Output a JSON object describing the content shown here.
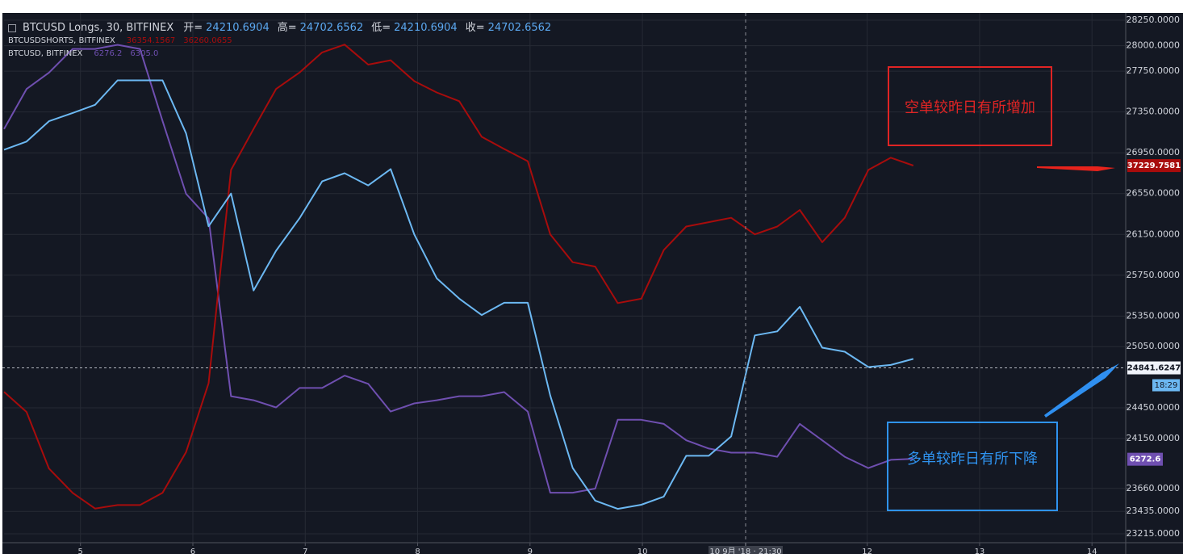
{
  "chart_data": {
    "type": "line",
    "title": "BTCUSD Longs, 30, BITFINEX",
    "ohlc": [
      {
        "label": "开=",
        "value": "24210.6904"
      },
      {
        "label": "高=",
        "value": "24702.6562"
      },
      {
        "label": "低=",
        "value": "24210.6904"
      },
      {
        "label": "收=",
        "value": "24702.6562"
      }
    ],
    "x": [
      4.32,
      4.52,
      4.72,
      4.93,
      5.13,
      5.33,
      5.53,
      5.73,
      5.94,
      6.14,
      6.34,
      6.54,
      6.74,
      6.95,
      7.15,
      7.35,
      7.56,
      7.76,
      7.97,
      8.17,
      8.37,
      8.57,
      8.77,
      8.98,
      9.18,
      9.38,
      9.58,
      9.78,
      9.99,
      10.19,
      10.39,
      10.59,
      10.79,
      11.0,
      11.2,
      11.4,
      11.6,
      11.8,
      12.01,
      12.21,
      12.41
    ],
    "xlim": [
      4.32,
      14.3
    ],
    "xticks": [
      5,
      6,
      7,
      8,
      9,
      10,
      12,
      13,
      14
    ],
    "ylim": [
      23215,
      28250
    ],
    "yticks": [
      {
        "value": 28250,
        "label": "28250.0000"
      },
      {
        "value": 28000,
        "label": "28000.0000"
      },
      {
        "value": 27750,
        "label": "27750.0000"
      },
      {
        "value": 27350,
        "label": "27350.0000"
      },
      {
        "value": 26950,
        "label": "26950.0000"
      },
      {
        "value": 26550,
        "label": "26550.0000"
      },
      {
        "value": 26150,
        "label": "26150.0000"
      },
      {
        "value": 25750,
        "label": "25750.0000"
      },
      {
        "value": 25350,
        "label": "25350.0000"
      },
      {
        "value": 25050,
        "label": "25050.0000"
      },
      {
        "value": 24450,
        "label": "24450.0000"
      },
      {
        "value": 24150,
        "label": "24150.0000"
      },
      {
        "value": 23660,
        "label": "23660.0000"
      },
      {
        "value": 23435,
        "label": "23435.0000"
      },
      {
        "value": 23215,
        "label": "23215.0000"
      }
    ],
    "grid": true,
    "series": [
      {
        "color": "#6cb8f2",
        "last_value": 24841.6247,
        "values": [
          26980,
          27060,
          27260,
          27340,
          27420,
          27660,
          27660,
          27660,
          27140,
          26230,
          26550,
          25600,
          25990,
          26310,
          26670,
          26750,
          26630,
          26790,
          26150,
          25720,
          25520,
          25360,
          25480,
          25480,
          24570,
          23860,
          23540,
          23460,
          23500,
          23580,
          23980,
          23980,
          24170,
          25160,
          25200,
          25440,
          25040,
          25000,
          24850,
          24870,
          24930
        ]
      },
      {
        "name": "BTCUSDSHORTS, BITFINEX",
        "color": "#a80c0c",
        "last_value": 37229.7581,
        "legend_values": [
          "36354.1567",
          "36260.0655"
        ],
        "ylim": [
          33000,
          38900
        ],
        "values": [
          34630,
          34400,
          33750,
          33470,
          33290,
          33330,
          33330,
          33470,
          33940,
          34730,
          37180,
          37650,
          38110,
          38300,
          38530,
          38620,
          38390,
          38440,
          38200,
          38070,
          37970,
          37560,
          37420,
          37280,
          36440,
          36120,
          36070,
          35650,
          35700,
          36260,
          36530,
          36580,
          36630,
          36440,
          36530,
          36720,
          36350,
          36630,
          37180,
          37320,
          37230
        ]
      },
      {
        "name": "BTCUSD, BITFINEX",
        "color": "#6f4fb0",
        "last_value": 6272.6,
        "legend_values": [
          "6276.2",
          "6305.0"
        ],
        "ylim": [
          6200,
          6700
        ],
        "values": [
          6594,
          6633,
          6649,
          6672,
          6672,
          6676,
          6672,
          6602,
          6531,
          6507,
          6334,
          6330,
          6323,
          6342,
          6342,
          6354,
          6346,
          6319,
          6327,
          6330,
          6334,
          6334,
          6338,
          6319,
          6240,
          6240,
          6244,
          6311,
          6311,
          6307,
          6291,
          6283,
          6279,
          6279,
          6275,
          6307,
          6291,
          6275,
          6264,
          6272,
          6273
        ]
      }
    ],
    "crosshair_label": "10 9月 '18 · 21:30",
    "countdown": "18:29",
    "annotations": [
      {
        "text": "空单较昨日有所增加",
        "color": "#e02424"
      },
      {
        "text": "多单较昨日有所下降",
        "color": "#2f93f0"
      }
    ]
  }
}
